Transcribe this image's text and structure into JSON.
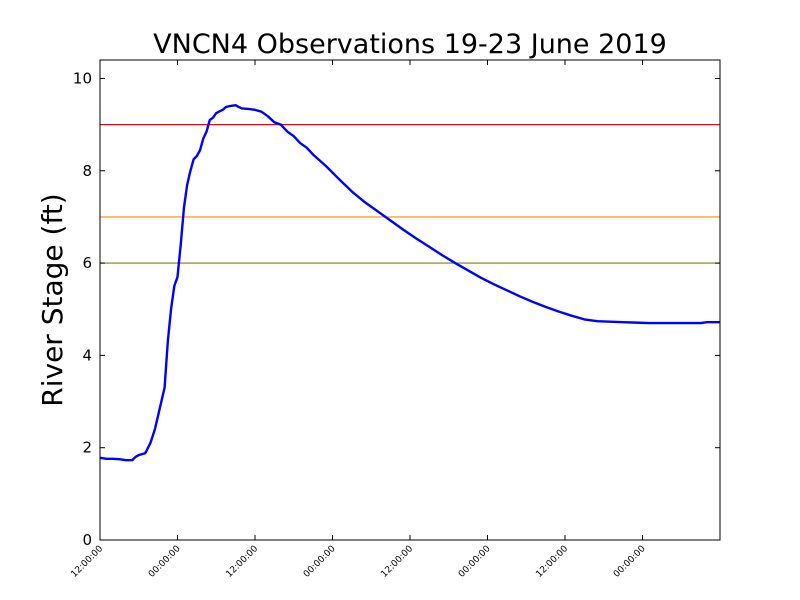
{
  "chart_data": {
    "type": "line",
    "title": "VNCN4 Observations 19-23 June 2019",
    "xlabel": "",
    "ylabel": "River Stage (ft)",
    "xlim_hours": [
      0,
      96
    ],
    "ylim": [
      0,
      10.4
    ],
    "yticks": [
      0,
      2,
      4,
      6,
      8,
      10
    ],
    "ytick_labels": [
      "0",
      "2",
      "4",
      "6",
      "8",
      "10"
    ],
    "xticks": [
      {
        "hours": 0,
        "label": "12:00:00"
      },
      {
        "hours": 12,
        "label": "00:00:00"
      },
      {
        "hours": 24,
        "label": "12:00:00"
      },
      {
        "hours": 36,
        "label": "00:00:00"
      },
      {
        "hours": 48,
        "label": "12:00:00"
      },
      {
        "hours": 60,
        "label": "00:00:00"
      },
      {
        "hours": 72,
        "label": "12:00:00"
      },
      {
        "hours": 84,
        "label": "00:00:00"
      }
    ],
    "thresholds": [
      {
        "value": 9.0,
        "color": "#ff0000"
      },
      {
        "value": 7.0,
        "color": "#ff8c00"
      },
      {
        "value": 6.0,
        "color": "#808000"
      }
    ],
    "series": [
      {
        "color": "#0000ff",
        "x_hours": [
          0,
          1,
          2,
          3,
          4,
          5,
          5.5,
          6,
          7,
          7.8,
          8.5,
          9,
          10,
          10.5,
          11,
          11.5,
          12,
          12.5,
          13,
          13.5,
          14,
          14.5,
          15,
          15.5,
          16,
          16.5,
          17,
          17.5,
          18,
          19,
          19.5,
          20,
          21,
          21.5,
          22,
          23,
          24,
          25,
          26,
          27,
          28,
          29,
          30,
          31,
          32,
          33,
          35,
          37,
          39,
          41,
          43,
          45,
          47,
          49,
          51,
          53,
          55,
          57,
          59,
          61,
          63,
          65,
          67,
          69,
          71,
          73,
          75,
          77,
          79,
          81,
          83,
          85,
          87,
          89,
          91,
          93,
          94,
          96
        ],
        "y": [
          1.78,
          1.76,
          1.76,
          1.75,
          1.73,
          1.73,
          1.8,
          1.84,
          1.88,
          2.1,
          2.4,
          2.7,
          3.3,
          4.3,
          5.0,
          5.5,
          5.7,
          6.4,
          7.2,
          7.7,
          8.0,
          8.25,
          8.32,
          8.45,
          8.7,
          8.85,
          9.1,
          9.15,
          9.25,
          9.32,
          9.38,
          9.4,
          9.42,
          9.38,
          9.35,
          9.34,
          9.32,
          9.28,
          9.18,
          9.05,
          9.0,
          8.85,
          8.75,
          8.6,
          8.5,
          8.35,
          8.1,
          7.82,
          7.55,
          7.32,
          7.12,
          6.92,
          6.72,
          6.53,
          6.35,
          6.17,
          6.0,
          5.84,
          5.68,
          5.54,
          5.41,
          5.28,
          5.16,
          5.05,
          4.95,
          4.86,
          4.78,
          4.74,
          4.73,
          4.72,
          4.71,
          4.7,
          4.7,
          4.7,
          4.7,
          4.7,
          4.72,
          4.72
        ]
      }
    ]
  }
}
